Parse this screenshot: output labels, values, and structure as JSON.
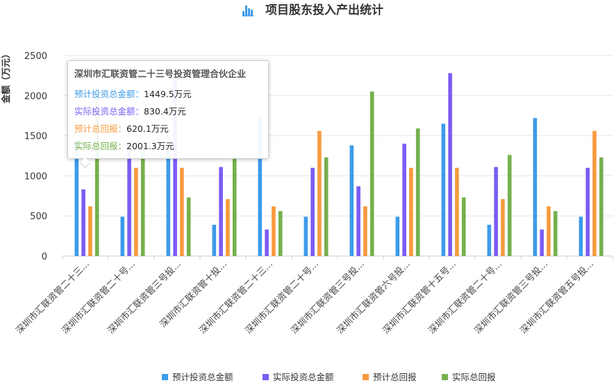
{
  "chart_data": {
    "type": "bar",
    "title": "项目股东投入产出统计",
    "title_icon": "bar-chart-icon",
    "ylabel": "金额（万元）",
    "ylim": [
      0,
      2500
    ],
    "yticks": [
      0,
      500,
      1000,
      1500,
      2000,
      2500
    ],
    "grid": true,
    "legend_position": "bottom-center",
    "categories": [
      "深圳市汇联资管二十三...",
      "深圳市汇联资管二十号...",
      "深圳市汇联资管三号投...",
      "深圳市汇联资管十投...",
      "深圳市汇联资管二十三...",
      "深圳市汇联资管二十号...",
      "深圳市汇联资管三号投...",
      "深圳市汇联资管六号投...",
      "深圳市汇联资管十五号...",
      "深圳市汇联资管二十号...",
      "深圳市汇联资管三号投...",
      "深圳市汇联资管五号投..."
    ],
    "series": [
      {
        "name": "预计投资总金额",
        "color": "#3d9be9",
        "values": [
          1449.5,
          490,
          1320,
          390,
          1720,
          490,
          1380,
          490,
          1650,
          390,
          1720,
          490
        ]
      },
      {
        "name": "实际投资总金额",
        "color": "#7b5cf4",
        "values": [
          830.4,
          1410,
          2240,
          1110,
          330,
          1100,
          870,
          1400,
          2280,
          1110,
          330,
          1100
        ]
      },
      {
        "name": "预计总回报",
        "color": "#f79a3e",
        "values": [
          620.1,
          1100,
          1100,
          710,
          620,
          1560,
          620,
          1100,
          1100,
          710,
          620,
          1560
        ]
      },
      {
        "name": "实际总回报",
        "color": "#76b04d",
        "values": [
          2001.3,
          1350,
          730,
          1260,
          560,
          1230,
          2050,
          1590,
          730,
          1260,
          560,
          1230
        ]
      }
    ]
  },
  "tooltip": {
    "title": "深圳市汇联资管二十三号投资管理合伙企业",
    "rows": [
      {
        "label": "预计投资总金额：",
        "value": "1449.5万元",
        "color": "#3d9be9"
      },
      {
        "label": "实际投资总金额：",
        "value": "830.4万元",
        "color": "#7b5cf4"
      },
      {
        "label": "预计总回报：",
        "value": "620.1万元",
        "color": "#f79a3e"
      },
      {
        "label": "实际总回报：",
        "value": "2001.3万元",
        "color": "#76b04d"
      }
    ]
  }
}
